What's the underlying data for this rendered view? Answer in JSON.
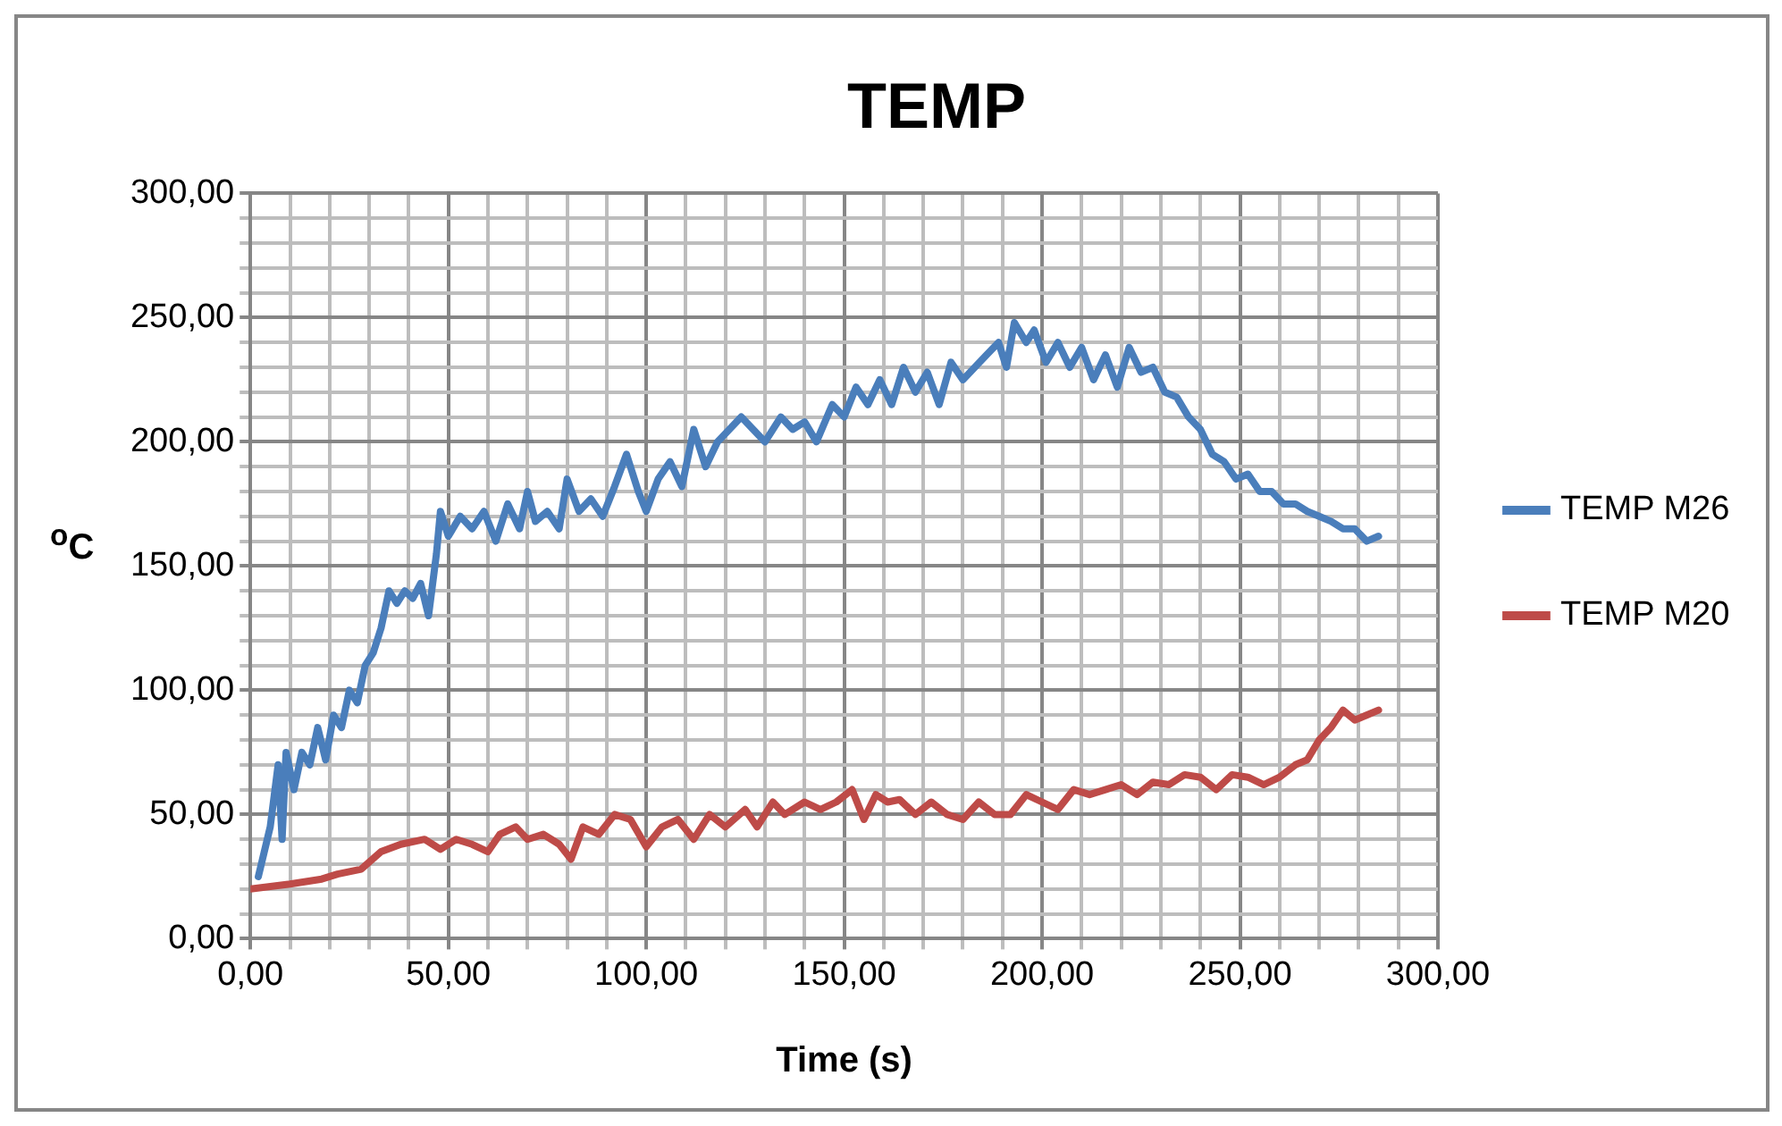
{
  "chart_data": {
    "type": "line",
    "title": "TEMP",
    "xlabel": "Time (s)",
    "ylabel": "$^{o}$C",
    "xlim": [
      0,
      300
    ],
    "xticks": [
      {
        "value": 0,
        "label": "0,00"
      },
      {
        "value": 10,
        "label": null
      },
      {
        "value": 20,
        "label": null
      },
      {
        "value": 30,
        "label": null
      },
      {
        "value": 40,
        "label": null
      },
      {
        "value": 50,
        "label": "50,00"
      },
      {
        "value": 60,
        "label": null
      },
      {
        "value": 70,
        "label": null
      },
      {
        "value": 80,
        "label": null
      },
      {
        "value": 90,
        "label": null
      },
      {
        "value": 100,
        "label": "100,00"
      },
      {
        "value": 110,
        "label": null
      },
      {
        "value": 120,
        "label": null
      },
      {
        "value": 130,
        "label": null
      },
      {
        "value": 140,
        "label": null
      },
      {
        "value": 150,
        "label": "150,00"
      },
      {
        "value": 160,
        "label": null
      },
      {
        "value": 170,
        "label": null
      },
      {
        "value": 180,
        "label": null
      },
      {
        "value": 190,
        "label": null
      },
      {
        "value": 200,
        "label": "200,00"
      },
      {
        "value": 210,
        "label": null
      },
      {
        "value": 220,
        "label": null
      },
      {
        "value": 230,
        "label": null
      },
      {
        "value": 240,
        "label": null
      },
      {
        "value": 250,
        "label": "250,00"
      },
      {
        "value": 260,
        "label": null
      },
      {
        "value": 270,
        "label": null
      },
      {
        "value": 280,
        "label": null
      },
      {
        "value": 290,
        "label": null
      },
      {
        "value": 300,
        "label": "300,00"
      }
    ],
    "ylim": [
      0,
      300
    ],
    "yticks": [
      {
        "value": 0,
        "label": "0,00"
      },
      {
        "value": 10,
        "label": null
      },
      {
        "value": 20,
        "label": null
      },
      {
        "value": 30,
        "label": null
      },
      {
        "value": 40,
        "label": null
      },
      {
        "value": 50,
        "label": "50,00"
      },
      {
        "value": 60,
        "label": null
      },
      {
        "value": 70,
        "label": null
      },
      {
        "value": 80,
        "label": null
      },
      {
        "value": 90,
        "label": null
      },
      {
        "value": 100,
        "label": "100,00"
      },
      {
        "value": 110,
        "label": null
      },
      {
        "value": 120,
        "label": null
      },
      {
        "value": 130,
        "label": null
      },
      {
        "value": 140,
        "label": null
      },
      {
        "value": 150,
        "label": "150,00"
      },
      {
        "value": 160,
        "label": null
      },
      {
        "value": 170,
        "label": null
      },
      {
        "value": 180,
        "label": null
      },
      {
        "value": 190,
        "label": null
      },
      {
        "value": 200,
        "label": "200,00"
      },
      {
        "value": 210,
        "label": null
      },
      {
        "value": 220,
        "label": null
      },
      {
        "value": 230,
        "label": null
      },
      {
        "value": 240,
        "label": null
      },
      {
        "value": 250,
        "label": "250,00"
      },
      {
        "value": 260,
        "label": null
      },
      {
        "value": 270,
        "label": null
      },
      {
        "value": 280,
        "label": null
      },
      {
        "value": 290,
        "label": null
      },
      {
        "value": 300,
        "label": "300,00"
      }
    ],
    "grid": true,
    "legend": "right",
    "marker": "none",
    "line_style": "solid",
    "series": [
      {
        "name": "TEMP M26",
        "color": "#4a7ebb",
        "x": [
          2,
          5,
          7,
          8,
          9,
          11,
          13,
          15,
          17,
          19,
          21,
          23,
          25,
          27,
          29,
          31,
          33,
          35,
          37,
          39,
          41,
          43,
          45,
          47,
          48,
          50,
          53,
          56,
          59,
          62,
          65,
          68,
          70,
          72,
          75,
          78,
          80,
          83,
          86,
          89,
          92,
          95,
          98,
          100,
          103,
          106,
          109,
          112,
          115,
          118,
          121,
          124,
          127,
          130,
          134,
          137,
          140,
          143,
          147,
          150,
          153,
          156,
          159,
          162,
          165,
          168,
          171,
          174,
          177,
          180,
          183,
          186,
          189,
          191,
          193,
          196,
          198,
          201,
          204,
          207,
          210,
          213,
          216,
          219,
          222,
          225,
          228,
          231,
          234,
          237,
          240,
          243,
          246,
          249,
          252,
          255,
          258,
          261,
          264,
          267,
          270,
          273,
          276,
          279,
          282,
          285
        ],
        "values": [
          25,
          45,
          70,
          40,
          75,
          60,
          75,
          70,
          85,
          72,
          90,
          85,
          100,
          95,
          110,
          115,
          125,
          140,
          135,
          140,
          137,
          143,
          130,
          155,
          172,
          162,
          170,
          165,
          172,
          160,
          175,
          165,
          180,
          168,
          172,
          165,
          185,
          172,
          177,
          170,
          182,
          195,
          180,
          172,
          185,
          192,
          182,
          205,
          190,
          200,
          205,
          210,
          205,
          200,
          210,
          205,
          208,
          200,
          215,
          210,
          222,
          215,
          225,
          215,
          230,
          220,
          228,
          215,
          232,
          225,
          230,
          235,
          240,
          230,
          248,
          240,
          245,
          232,
          240,
          230,
          238,
          225,
          235,
          222,
          238,
          228,
          230,
          220,
          218,
          210,
          205,
          195,
          192,
          185,
          187,
          180,
          180,
          175,
          175,
          172,
          170,
          168,
          165,
          165,
          160,
          162
        ]
      },
      {
        "name": "TEMP M20",
        "color": "#be4b48",
        "x": [
          0,
          10,
          18,
          22,
          28,
          33,
          38,
          44,
          48,
          52,
          56,
          60,
          63,
          67,
          70,
          74,
          78,
          81,
          84,
          88,
          92,
          96,
          100,
          104,
          108,
          112,
          116,
          120,
          125,
          128,
          132,
          135,
          140,
          144,
          148,
          152,
          155,
          158,
          161,
          164,
          168,
          172,
          176,
          180,
          184,
          188,
          192,
          196,
          200,
          204,
          208,
          212,
          216,
          220,
          224,
          228,
          232,
          236,
          240,
          244,
          248,
          252,
          256,
          260,
          264,
          267,
          270,
          273,
          276,
          279,
          282,
          285
        ],
        "values": [
          20,
          22,
          24,
          26,
          28,
          35,
          38,
          40,
          36,
          40,
          38,
          35,
          42,
          45,
          40,
          42,
          38,
          32,
          45,
          42,
          50,
          48,
          37,
          45,
          48,
          40,
          50,
          45,
          52,
          45,
          55,
          50,
          55,
          52,
          55,
          60,
          48,
          58,
          55,
          56,
          50,
          55,
          50,
          48,
          55,
          50,
          50,
          58,
          55,
          52,
          60,
          58,
          60,
          62,
          58,
          63,
          62,
          66,
          65,
          60,
          66,
          65,
          62,
          65,
          70,
          72,
          80,
          85,
          92,
          88,
          90,
          92
        ]
      }
    ]
  }
}
